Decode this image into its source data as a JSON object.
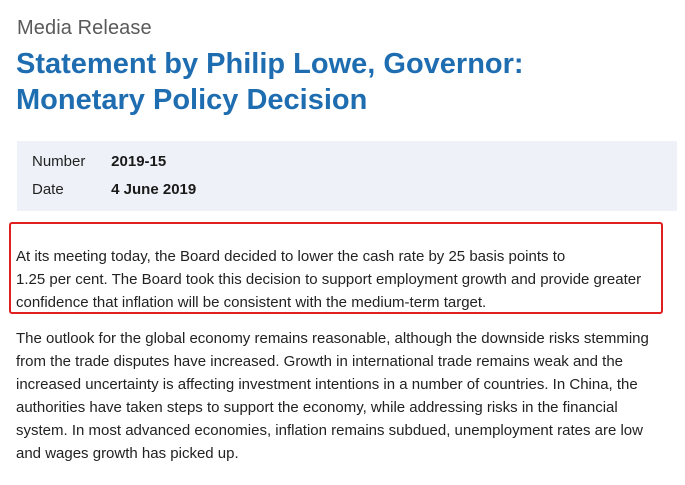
{
  "header": {
    "kicker": "Media Release",
    "title_line1": "Statement by Philip Lowe, Governor:",
    "title_line2": "Monetary Policy Decision"
  },
  "meta": {
    "number_label": "Number",
    "number_value": "2019-15",
    "date_label": "Date",
    "date_value": "4 June 2019"
  },
  "lead_paragraph": {
    "lines": [
      "At its meeting today, the Board decided to lower the cash rate by 25 basis points to",
      "1.25 per cent. The Board took this decision to support employment growth and provide greater",
      "confidence that inflation will be consistent with the medium-term target."
    ]
  },
  "body_paragraph": {
    "lines": [
      "The outlook for the global economy remains reasonable, although the downside risks stemming",
      "from the trade disputes have increased. Growth in international trade remains weak and the",
      "increased uncertainty is affecting investment intentions in a number of countries. In China, the",
      "authorities have taken steps to support the economy, while addressing risks in the financial",
      "system. In most advanced economies, inflation remains subdued, unemployment rates are low",
      "and wages growth has picked up."
    ]
  },
  "colors": {
    "title": "#1f6db1",
    "meta_background": "#eef2f8",
    "highlight_border": "#e02020"
  }
}
